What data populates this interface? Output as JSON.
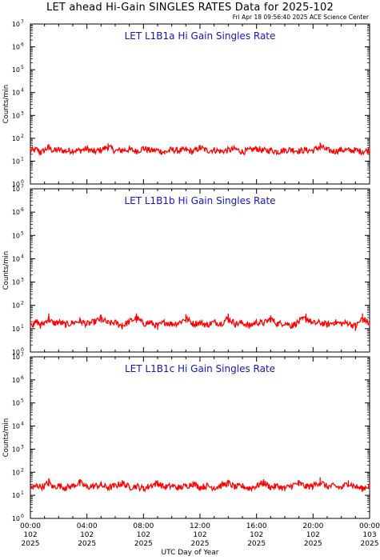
{
  "header": {
    "title": "LET ahead Hi-Gain SINGLES RATES Data for 2025-102",
    "timestamp": "Fri Apr 18 09:56:40 2025 ACE Science Center"
  },
  "colors": {
    "series": "#ff0000",
    "panel_title": "#1414c8",
    "axes": "#000000"
  },
  "chart_data": [
    {
      "type": "line",
      "title": "LET L1B1a Hi Gain Singles Rate",
      "ylabel": "Counts/min",
      "xlabel": "UTC Day of Year",
      "yscale": "log",
      "ylim": [
        1,
        10000000
      ],
      "y_tick_bases": [
        "10",
        "10",
        "10",
        "10",
        "10",
        "10",
        "10",
        "10"
      ],
      "y_tick_exponents": [
        "0",
        "1",
        "2",
        "3",
        "4",
        "5",
        "6",
        "7"
      ],
      "xlim_hours": [
        0,
        24
      ],
      "series": [
        {
          "baseline": 30,
          "x_hours": [
            0,
            0.2,
            0.5,
            0.7,
            1.0,
            1.3,
            1.6,
            2.0,
            2.5,
            3.0,
            3.5,
            4.0,
            4.5,
            5.0,
            5.5,
            6.0,
            6.5,
            7.0,
            7.5,
            8.0,
            8.5,
            9.0,
            9.5,
            10.0,
            10.5,
            11.0,
            11.5,
            12.0,
            12.5,
            13.0,
            13.5,
            14.0,
            14.5,
            15.0,
            15.5,
            16.0,
            16.5,
            17.0,
            17.5,
            18.0,
            18.5,
            19.0,
            19.5,
            20.0,
            20.5,
            21.0,
            21.5,
            22.0,
            22.5,
            23.0,
            23.5,
            24.0
          ],
          "values": [
            32,
            28,
            35,
            18,
            30,
            55,
            27,
            33,
            25,
            30,
            28,
            40,
            22,
            32,
            60,
            26,
            30,
            35,
            24,
            45,
            28,
            30,
            20,
            34,
            27,
            31,
            22,
            50,
            28,
            32,
            24,
            30,
            38,
            22,
            29,
            42,
            27,
            30,
            22,
            31,
            35,
            26,
            30,
            28,
            65,
            30,
            24,
            33,
            28,
            30,
            22,
            32
          ]
        }
      ],
      "x_tick_labels": [
        {
          "time": "00:00",
          "doy": "102",
          "year": "2025"
        },
        {
          "time": "04:00",
          "doy": "102",
          "year": "2025"
        },
        {
          "time": "08:00",
          "doy": "102",
          "year": "2025"
        },
        {
          "time": "12:00",
          "doy": "102",
          "year": "2025"
        },
        {
          "time": "16:00",
          "doy": "102",
          "year": "2025"
        },
        {
          "time": "20:00",
          "doy": "102",
          "year": "2025"
        },
        {
          "time": "00:00",
          "doy": "103",
          "year": "2025"
        }
      ]
    },
    {
      "type": "line",
      "title": "LET L1B1b Hi Gain Singles Rate",
      "ylabel": "Counts/min",
      "xlabel": "UTC Day of Year",
      "yscale": "log",
      "ylim": [
        1,
        10000000
      ],
      "y_tick_bases": [
        "10",
        "10",
        "10",
        "10",
        "10",
        "10",
        "10",
        "10"
      ],
      "y_tick_exponents": [
        "0",
        "1",
        "2",
        "3",
        "4",
        "5",
        "6",
        "7"
      ],
      "xlim_hours": [
        0,
        24
      ],
      "series": [
        {
          "baseline": 18,
          "x_hours": [
            0,
            0.2,
            0.5,
            0.7,
            1.0,
            1.3,
            1.6,
            2.0,
            2.5,
            3.0,
            3.5,
            4.0,
            4.5,
            5.0,
            5.5,
            6.0,
            6.5,
            7.0,
            7.5,
            8.0,
            8.5,
            9.0,
            9.5,
            10.0,
            10.5,
            11.0,
            11.5,
            12.0,
            12.5,
            13.0,
            13.5,
            14.0,
            14.5,
            15.0,
            15.5,
            16.0,
            16.5,
            17.0,
            17.5,
            18.0,
            18.5,
            19.0,
            19.5,
            20.0,
            20.5,
            21.0,
            21.5,
            22.0,
            22.5,
            23.0,
            23.5,
            24.0
          ],
          "values": [
            20,
            12,
            22,
            10,
            18,
            45,
            15,
            20,
            12,
            18,
            25,
            14,
            20,
            40,
            16,
            18,
            10,
            22,
            45,
            15,
            18,
            9,
            20,
            14,
            18,
            42,
            15,
            18,
            12,
            20,
            16,
            45,
            14,
            18,
            10,
            20,
            16,
            38,
            14,
            18,
            10,
            22,
            45,
            16,
            18,
            12,
            20,
            15,
            18,
            8,
            45,
            14
          ]
        }
      ],
      "x_tick_labels": [
        {
          "time": "00:00",
          "doy": "102",
          "year": "2025"
        },
        {
          "time": "04:00",
          "doy": "102",
          "year": "2025"
        },
        {
          "time": "08:00",
          "doy": "102",
          "year": "2025"
        },
        {
          "time": "12:00",
          "doy": "102",
          "year": "2025"
        },
        {
          "time": "16:00",
          "doy": "102",
          "year": "2025"
        },
        {
          "time": "20:00",
          "doy": "102",
          "year": "2025"
        },
        {
          "time": "00:00",
          "doy": "103",
          "year": "2025"
        }
      ]
    },
    {
      "type": "line",
      "title": "LET L1B1c Hi Gain Singles Rate",
      "ylabel": "Counts/min",
      "xlabel": "UTC Day of Year",
      "yscale": "log",
      "ylim": [
        1,
        10000000
      ],
      "y_tick_bases": [
        "10",
        "10",
        "10",
        "10",
        "10",
        "10",
        "10",
        "10"
      ],
      "y_tick_exponents": [
        "0",
        "1",
        "2",
        "3",
        "4",
        "5",
        "6",
        "7"
      ],
      "xlim_hours": [
        0,
        24
      ],
      "series": [
        {
          "baseline": 25,
          "x_hours": [
            0,
            0.2,
            0.5,
            0.7,
            1.0,
            1.3,
            1.6,
            2.0,
            2.5,
            3.0,
            3.5,
            4.0,
            4.5,
            5.0,
            5.5,
            6.0,
            6.5,
            7.0,
            7.5,
            8.0,
            8.5,
            9.0,
            9.5,
            10.0,
            10.5,
            11.0,
            11.5,
            12.0,
            12.5,
            13.0,
            13.5,
            14.0,
            14.5,
            15.0,
            15.5,
            16.0,
            16.5,
            17.0,
            17.5,
            18.0,
            18.5,
            19.0,
            19.5,
            20.0,
            20.5,
            21.0,
            21.5,
            22.0,
            22.5,
            23.0,
            23.5,
            24.0
          ],
          "values": [
            28,
            18,
            30,
            22,
            25,
            55,
            20,
            28,
            18,
            26,
            50,
            20,
            25,
            30,
            18,
            26,
            45,
            20,
            25,
            15,
            28,
            45,
            20,
            26,
            18,
            25,
            40,
            20,
            26,
            18,
            28,
            45,
            20,
            25,
            16,
            26,
            50,
            20,
            25,
            15,
            28,
            45,
            22,
            26,
            60,
            22,
            25,
            18,
            45,
            22,
            15,
            30
          ]
        }
      ],
      "x_tick_labels": [
        {
          "time": "00:00",
          "doy": "102",
          "year": "2025"
        },
        {
          "time": "04:00",
          "doy": "102",
          "year": "2025"
        },
        {
          "time": "08:00",
          "doy": "102",
          "year": "2025"
        },
        {
          "time": "12:00",
          "doy": "102",
          "year": "2025"
        },
        {
          "time": "16:00",
          "doy": "102",
          "year": "2025"
        },
        {
          "time": "20:00",
          "doy": "102",
          "year": "2025"
        },
        {
          "time": "00:00",
          "doy": "103",
          "year": "2025"
        }
      ]
    }
  ]
}
